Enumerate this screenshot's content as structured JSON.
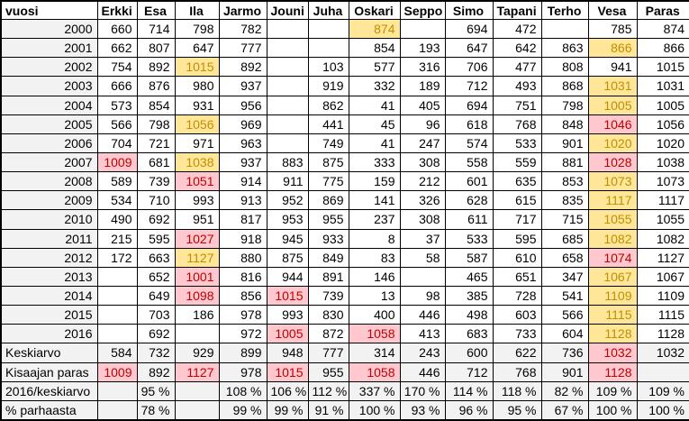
{
  "colors": {
    "row_shade": "#F2F2F2",
    "highlight_yellow_bg": "#FFE699",
    "highlight_yellow_text": "#BF8F00",
    "highlight_pink_bg": "#FFC7CE",
    "highlight_pink_text": "#C00000",
    "border": "#000000"
  },
  "table": {
    "columns": [
      "vuosi",
      "Erkki",
      "Esa",
      "Ila",
      "Jarmo",
      "Jouni",
      "Juha",
      "Oskari",
      "Seppo",
      "Simo",
      "Tapani",
      "Terho",
      "Vesa",
      "Paras"
    ],
    "rows": [
      {
        "label": "2000",
        "type": "year",
        "cells": [
          "660",
          "714",
          "798",
          "782",
          "",
          "",
          "874",
          "",
          "694",
          "472",
          "",
          "785",
          "874"
        ],
        "hl": {
          "6": "yellow"
        }
      },
      {
        "label": "2001",
        "type": "year",
        "cells": [
          "662",
          "807",
          "647",
          "777",
          "",
          "",
          "854",
          "193",
          "647",
          "642",
          "863",
          "866",
          "866"
        ],
        "hl": {
          "11": "yellow"
        }
      },
      {
        "label": "2002",
        "type": "year",
        "cells": [
          "754",
          "892",
          "1015",
          "892",
          "",
          "103",
          "577",
          "316",
          "706",
          "477",
          "808",
          "941",
          "1015"
        ],
        "hl": {
          "2": "yellow"
        }
      },
      {
        "label": "2003",
        "type": "year",
        "cells": [
          "666",
          "876",
          "980",
          "937",
          "",
          "919",
          "332",
          "189",
          "712",
          "493",
          "868",
          "1031",
          "1031"
        ],
        "hl": {
          "11": "yellow"
        }
      },
      {
        "label": "2004",
        "type": "year",
        "cells": [
          "573",
          "854",
          "931",
          "956",
          "",
          "862",
          "41",
          "405",
          "694",
          "751",
          "798",
          "1005",
          "1005"
        ],
        "hl": {
          "11": "yellow"
        }
      },
      {
        "label": "2005",
        "type": "year",
        "cells": [
          "566",
          "798",
          "1056",
          "969",
          "",
          "441",
          "45",
          "96",
          "618",
          "768",
          "848",
          "1046",
          "1056"
        ],
        "hl": {
          "2": "yellow",
          "11": "pink"
        }
      },
      {
        "label": "2006",
        "type": "year",
        "cells": [
          "704",
          "721",
          "971",
          "963",
          "",
          "749",
          "41",
          "247",
          "574",
          "533",
          "901",
          "1020",
          "1020"
        ],
        "hl": {
          "11": "yellow"
        }
      },
      {
        "label": "2007",
        "type": "year",
        "cells": [
          "1009",
          "681",
          "1038",
          "937",
          "883",
          "875",
          "333",
          "308",
          "558",
          "559",
          "881",
          "1028",
          "1038"
        ],
        "hl": {
          "0": "pink",
          "2": "yellow",
          "11": "pink"
        }
      },
      {
        "label": "2008",
        "type": "year",
        "cells": [
          "589",
          "739",
          "1051",
          "914",
          "911",
          "775",
          "159",
          "212",
          "601",
          "635",
          "853",
          "1073",
          "1073"
        ],
        "hl": {
          "2": "pink",
          "11": "yellow"
        }
      },
      {
        "label": "2009",
        "type": "year",
        "cells": [
          "534",
          "710",
          "993",
          "913",
          "952",
          "869",
          "141",
          "326",
          "628",
          "615",
          "835",
          "1117",
          "1117"
        ],
        "hl": {
          "11": "yellow"
        }
      },
      {
        "label": "2010",
        "type": "year",
        "cells": [
          "490",
          "692",
          "951",
          "817",
          "953",
          "955",
          "237",
          "308",
          "611",
          "717",
          "715",
          "1055",
          "1055"
        ],
        "hl": {
          "11": "yellow"
        }
      },
      {
        "label": "2011",
        "type": "year",
        "cells": [
          "215",
          "595",
          "1027",
          "918",
          "945",
          "933",
          "8",
          "37",
          "533",
          "595",
          "685",
          "1082",
          "1082"
        ],
        "hl": {
          "2": "pink",
          "11": "yellow"
        }
      },
      {
        "label": "2012",
        "type": "year",
        "cells": [
          "172",
          "663",
          "1127",
          "880",
          "875",
          "849",
          "83",
          "58",
          "587",
          "610",
          "658",
          "1074",
          "1127"
        ],
        "hl": {
          "2": "yellow",
          "11": "pink"
        }
      },
      {
        "label": "2013",
        "type": "year",
        "cells": [
          "",
          "652",
          "1001",
          "816",
          "944",
          "891",
          "146",
          "",
          "465",
          "651",
          "347",
          "1067",
          "1067"
        ],
        "hl": {
          "2": "pink",
          "11": "yellow"
        }
      },
      {
        "label": "2014",
        "type": "year",
        "cells": [
          "",
          "649",
          "1098",
          "856",
          "1015",
          "739",
          "13",
          "98",
          "385",
          "728",
          "541",
          "1109",
          "1109"
        ],
        "hl": {
          "2": "pink",
          "4": "pink",
          "11": "yellow"
        }
      },
      {
        "label": "2015",
        "type": "year",
        "cells": [
          "",
          "703",
          "186",
          "978",
          "993",
          "830",
          "400",
          "446",
          "498",
          "603",
          "566",
          "1115",
          "1115"
        ],
        "hl": {
          "11": "yellow"
        }
      },
      {
        "label": "2016",
        "type": "year",
        "cells": [
          "",
          "692",
          "",
          "972",
          "1005",
          "872",
          "1058",
          "413",
          "683",
          "733",
          "604",
          "1128",
          "1128"
        ],
        "hl": {
          "4": "pink",
          "6": "pink",
          "11": "yellow"
        }
      },
      {
        "label": "Keskiarvo",
        "type": "summary",
        "cells": [
          "584",
          "732",
          "929",
          "899",
          "948",
          "777",
          "314",
          "243",
          "600",
          "622",
          "736",
          "1032",
          "1032"
        ],
        "hl": {
          "11": "pink"
        }
      },
      {
        "label": "Kisaajan paras",
        "type": "summary",
        "cells": [
          "1009",
          "892",
          "1127",
          "978",
          "1015",
          "955",
          "1058",
          "446",
          "712",
          "768",
          "901",
          "1128",
          ""
        ],
        "hl": {
          "0": "pink",
          "2": "pink",
          "4": "pink",
          "6": "pink",
          "11": "pink"
        }
      },
      {
        "label": "2016/keskiarvo",
        "type": "summary",
        "cells": [
          "",
          "95 %",
          "",
          "108 %",
          "106 %",
          "112 %",
          "337 %",
          "170 %",
          "114 %",
          "118 %",
          "82 %",
          "109 %",
          "109 %"
        ],
        "hl": {}
      },
      {
        "label": "% parhaasta",
        "type": "summary",
        "cells": [
          "",
          "78 %",
          "",
          "99 %",
          "99 %",
          "91 %",
          "100 %",
          "93 %",
          "96 %",
          "95 %",
          "67 %",
          "100 %",
          "100 %"
        ],
        "hl": {}
      }
    ]
  }
}
